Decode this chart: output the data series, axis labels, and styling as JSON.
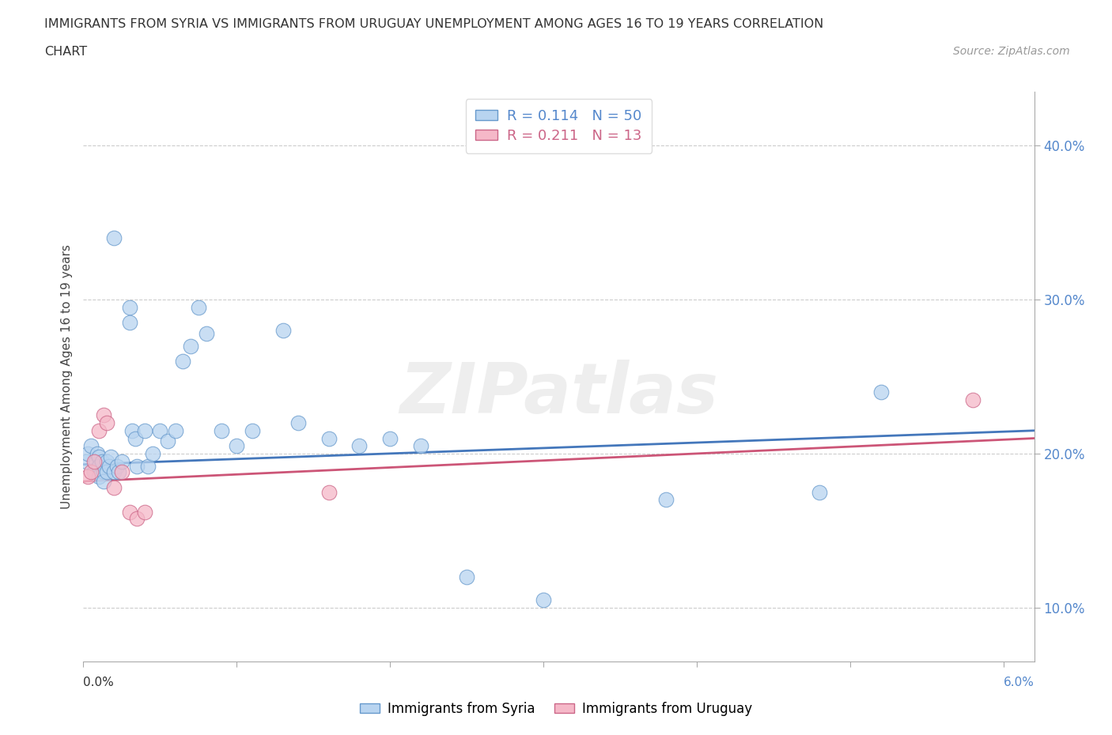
{
  "title_line1": "IMMIGRANTS FROM SYRIA VS IMMIGRANTS FROM URUGUAY UNEMPLOYMENT AMONG AGES 16 TO 19 YEARS CORRELATION",
  "title_line2": "CHART",
  "source_text": "Source: ZipAtlas.com",
  "ylabel": "Unemployment Among Ages 16 to 19 years",
  "xlim": [
    0.0,
    0.062
  ],
  "ylim": [
    0.065,
    0.435
  ],
  "yticks": [
    0.1,
    0.2,
    0.3,
    0.4
  ],
  "ytick_labels": [
    "10.0%",
    "20.0%",
    "30.0%",
    "40.0%"
  ],
  "xtick_start": "0.0%",
  "xtick_end": "6.0%",
  "syria_R": 0.114,
  "syria_N": 50,
  "uruguay_R": 0.211,
  "uruguay_N": 13,
  "syria_face_color": "#b8d4f0",
  "syria_edge_color": "#6699cc",
  "uruguay_face_color": "#f5b8c8",
  "uruguay_edge_color": "#cc6688",
  "syria_line_color": "#4477bb",
  "uruguay_line_color": "#cc5577",
  "watermark": "ZIPatlas",
  "syria_x": [
    0.0002,
    0.0003,
    0.0005,
    0.0007,
    0.0008,
    0.0009,
    0.001,
    0.001,
    0.001,
    0.0012,
    0.0013,
    0.0013,
    0.0015,
    0.0015,
    0.0017,
    0.0018,
    0.002,
    0.002,
    0.0022,
    0.0023,
    0.0025,
    0.003,
    0.003,
    0.0032,
    0.0034,
    0.0035,
    0.004,
    0.0042,
    0.0045,
    0.005,
    0.0055,
    0.006,
    0.0065,
    0.007,
    0.0075,
    0.008,
    0.009,
    0.01,
    0.011,
    0.013,
    0.014,
    0.016,
    0.018,
    0.02,
    0.022,
    0.025,
    0.03,
    0.038,
    0.048,
    0.052
  ],
  "syria_y": [
    0.195,
    0.2,
    0.205,
    0.188,
    0.195,
    0.2,
    0.198,
    0.192,
    0.185,
    0.195,
    0.188,
    0.182,
    0.195,
    0.188,
    0.192,
    0.198,
    0.34,
    0.188,
    0.192,
    0.188,
    0.195,
    0.295,
    0.285,
    0.215,
    0.21,
    0.192,
    0.215,
    0.192,
    0.2,
    0.215,
    0.208,
    0.215,
    0.26,
    0.27,
    0.295,
    0.278,
    0.215,
    0.205,
    0.215,
    0.28,
    0.22,
    0.21,
    0.205,
    0.21,
    0.205,
    0.12,
    0.105,
    0.17,
    0.175,
    0.24
  ],
  "uruguay_x": [
    0.0003,
    0.0005,
    0.0007,
    0.001,
    0.0013,
    0.0015,
    0.002,
    0.0025,
    0.003,
    0.0035,
    0.004,
    0.016,
    0.058
  ],
  "uruguay_y": [
    0.185,
    0.188,
    0.195,
    0.215,
    0.225,
    0.22,
    0.178,
    0.188,
    0.162,
    0.158,
    0.162,
    0.175,
    0.235
  ],
  "syria_trend_x": [
    0.0,
    0.062
  ],
  "syria_trend_y": [
    0.193,
    0.215
  ],
  "uruguay_trend_x": [
    0.0,
    0.062
  ],
  "uruguay_trend_y": [
    0.182,
    0.21
  ]
}
